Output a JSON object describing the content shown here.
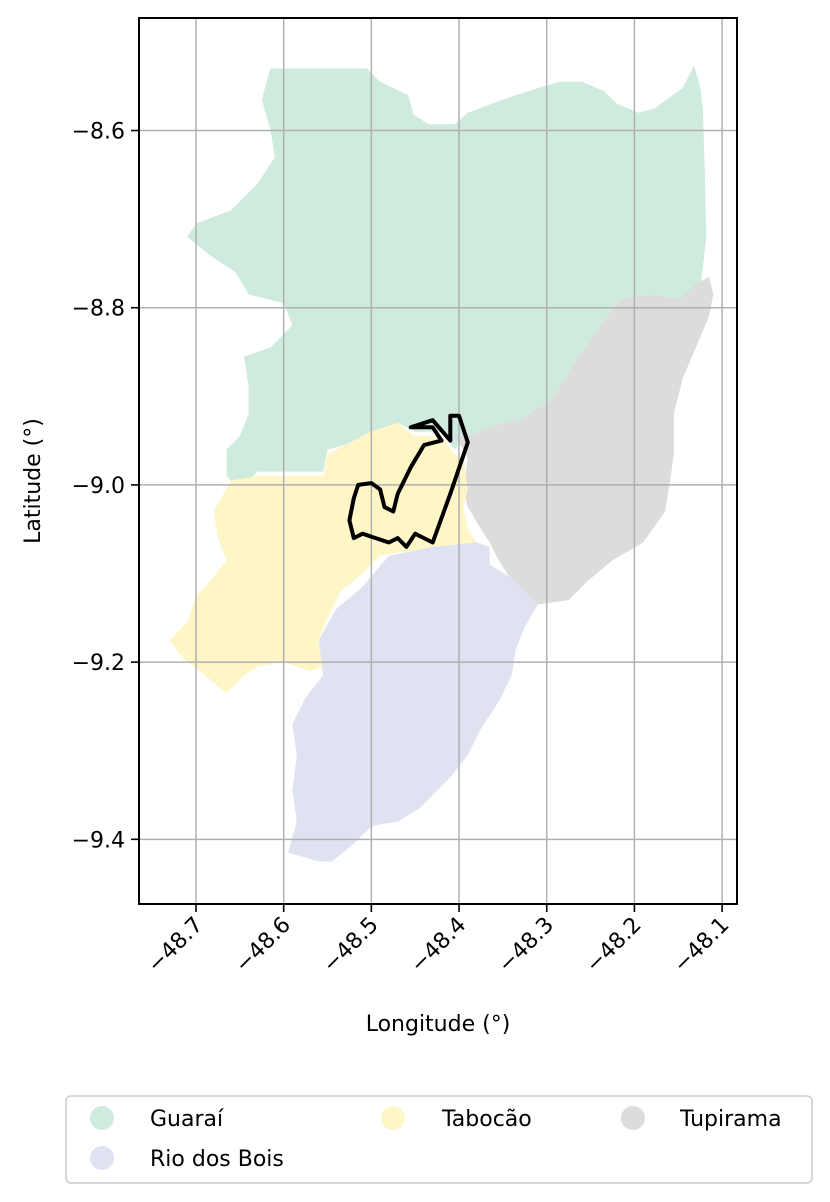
{
  "chart_data": {
    "type": "map",
    "xlabel": "Longitude (°)",
    "ylabel": "Latitude (°)",
    "xlim": [
      -48.765,
      -48.083
    ],
    "ylim": [
      -9.473,
      -8.473
    ],
    "xticks": [
      -48.7,
      -48.6,
      -48.5,
      -48.4,
      -48.3,
      -48.2,
      -48.1
    ],
    "yticks": [
      -8.6,
      -8.8,
      -9.0,
      -9.2,
      -9.4
    ],
    "xtick_labels": [
      "−48.7",
      "−48.6",
      "−48.5",
      "−48.4",
      "−48.3",
      "−48.2",
      "−48.1"
    ],
    "ytick_labels": [
      "−8.6",
      "−8.8",
      "−9.0",
      "−9.2",
      "−9.4"
    ],
    "grid": true,
    "legend_position": "bottom",
    "regions": [
      {
        "name": "Guaraí",
        "color": "#cfebdd",
        "coords": [
          [
            -48.615,
            -8.53
          ],
          [
            -48.555,
            -8.53
          ],
          [
            -48.505,
            -8.53
          ],
          [
            -48.49,
            -8.545
          ],
          [
            -48.458,
            -8.56
          ],
          [
            -48.452,
            -8.582
          ],
          [
            -48.435,
            -8.593
          ],
          [
            -48.405,
            -8.593
          ],
          [
            -48.39,
            -8.58
          ],
          [
            -48.35,
            -8.565
          ],
          [
            -48.31,
            -8.552
          ],
          [
            -48.285,
            -8.545
          ],
          [
            -48.26,
            -8.545
          ],
          [
            -48.235,
            -8.555
          ],
          [
            -48.22,
            -8.57
          ],
          [
            -48.195,
            -8.58
          ],
          [
            -48.177,
            -8.575
          ],
          [
            -48.145,
            -8.552
          ],
          [
            -48.132,
            -8.527
          ],
          [
            -48.125,
            -8.55
          ],
          [
            -48.122,
            -8.575
          ],
          [
            -48.12,
            -8.64
          ],
          [
            -48.118,
            -8.72
          ],
          [
            -48.125,
            -8.78
          ],
          [
            -48.147,
            -8.79
          ],
          [
            -48.185,
            -8.785
          ],
          [
            -48.215,
            -8.79
          ],
          [
            -48.235,
            -8.815
          ],
          [
            -48.27,
            -8.865
          ],
          [
            -48.295,
            -8.905
          ],
          [
            -48.33,
            -8.925
          ],
          [
            -48.365,
            -8.935
          ],
          [
            -48.39,
            -8.945
          ],
          [
            -48.405,
            -8.96
          ],
          [
            -48.42,
            -8.94
          ],
          [
            -48.45,
            -8.94
          ],
          [
            -48.47,
            -8.93
          ],
          [
            -48.5,
            -8.94
          ],
          [
            -48.53,
            -8.955
          ],
          [
            -48.55,
            -8.96
          ],
          [
            -48.555,
            -8.985
          ],
          [
            -48.59,
            -8.985
          ],
          [
            -48.63,
            -8.985
          ],
          [
            -48.65,
            -9.005
          ],
          [
            -48.665,
            -8.99
          ],
          [
            -48.665,
            -8.96
          ],
          [
            -48.65,
            -8.945
          ],
          [
            -48.64,
            -8.92
          ],
          [
            -48.64,
            -8.89
          ],
          [
            -48.645,
            -8.855
          ],
          [
            -48.615,
            -8.845
          ],
          [
            -48.59,
            -8.82
          ],
          [
            -48.6,
            -8.795
          ],
          [
            -48.64,
            -8.785
          ],
          [
            -48.655,
            -8.76
          ],
          [
            -48.685,
            -8.74
          ],
          [
            -48.71,
            -8.72
          ],
          [
            -48.7,
            -8.705
          ],
          [
            -48.66,
            -8.69
          ],
          [
            -48.63,
            -8.66
          ],
          [
            -48.61,
            -8.63
          ],
          [
            -48.615,
            -8.6
          ],
          [
            -48.625,
            -8.565
          ],
          [
            -48.615,
            -8.53
          ]
        ]
      },
      {
        "name": "Tupirama",
        "color": "#dcdcdc",
        "coords": [
          [
            -48.132,
            -8.775
          ],
          [
            -48.115,
            -8.765
          ],
          [
            -48.11,
            -8.785
          ],
          [
            -48.115,
            -8.81
          ],
          [
            -48.13,
            -8.845
          ],
          [
            -48.145,
            -8.88
          ],
          [
            -48.155,
            -8.92
          ],
          [
            -48.155,
            -8.965
          ],
          [
            -48.16,
            -9.0
          ],
          [
            -48.165,
            -9.03
          ],
          [
            -48.19,
            -9.065
          ],
          [
            -48.225,
            -9.085
          ],
          [
            -48.255,
            -9.11
          ],
          [
            -48.275,
            -9.13
          ],
          [
            -48.31,
            -9.135
          ],
          [
            -48.335,
            -9.115
          ],
          [
            -48.355,
            -9.085
          ],
          [
            -48.365,
            -9.065
          ],
          [
            -48.375,
            -9.05
          ],
          [
            -48.39,
            -9.025
          ],
          [
            -48.395,
            -9.005
          ],
          [
            -48.39,
            -8.97
          ],
          [
            -48.395,
            -8.96
          ],
          [
            -48.405,
            -8.945
          ],
          [
            -48.42,
            -8.945
          ],
          [
            -48.39,
            -8.945
          ],
          [
            -48.365,
            -8.935
          ],
          [
            -48.33,
            -8.925
          ],
          [
            -48.295,
            -8.905
          ],
          [
            -48.27,
            -8.865
          ],
          [
            -48.235,
            -8.815
          ],
          [
            -48.215,
            -8.79
          ],
          [
            -48.185,
            -8.785
          ],
          [
            -48.147,
            -8.79
          ],
          [
            -48.132,
            -8.775
          ]
        ]
      },
      {
        "name": "Tabocão",
        "color": "#fff6c8",
        "coords": [
          [
            -48.66,
            -8.995
          ],
          [
            -48.63,
            -8.99
          ],
          [
            -48.59,
            -8.99
          ],
          [
            -48.555,
            -8.99
          ],
          [
            -48.55,
            -8.965
          ],
          [
            -48.53,
            -8.955
          ],
          [
            -48.5,
            -8.94
          ],
          [
            -48.47,
            -8.93
          ],
          [
            -48.45,
            -8.945
          ],
          [
            -48.42,
            -8.945
          ],
          [
            -48.405,
            -8.965
          ],
          [
            -48.395,
            -8.97
          ],
          [
            -48.39,
            -9.005
          ],
          [
            -48.395,
            -9.025
          ],
          [
            -48.39,
            -9.05
          ],
          [
            -48.38,
            -9.065
          ],
          [
            -48.42,
            -9.07
          ],
          [
            -48.46,
            -9.075
          ],
          [
            -48.49,
            -9.08
          ],
          [
            -48.51,
            -9.1
          ],
          [
            -48.535,
            -9.12
          ],
          [
            -48.55,
            -9.15
          ],
          [
            -48.56,
            -9.175
          ],
          [
            -48.555,
            -9.205
          ],
          [
            -48.57,
            -9.21
          ],
          [
            -48.6,
            -9.2
          ],
          [
            -48.63,
            -9.205
          ],
          [
            -48.65,
            -9.22
          ],
          [
            -48.665,
            -9.235
          ],
          [
            -48.69,
            -9.215
          ],
          [
            -48.715,
            -9.195
          ],
          [
            -48.73,
            -9.175
          ],
          [
            -48.71,
            -9.155
          ],
          [
            -48.7,
            -9.125
          ],
          [
            -48.685,
            -9.11
          ],
          [
            -48.665,
            -9.085
          ],
          [
            -48.675,
            -9.06
          ],
          [
            -48.68,
            -9.03
          ],
          [
            -48.66,
            -8.995
          ]
        ]
      },
      {
        "name": "Rio dos Bois",
        "color": "#dfe3f1",
        "coords": [
          [
            -48.48,
            -9.08
          ],
          [
            -48.43,
            -9.07
          ],
          [
            -48.38,
            -9.065
          ],
          [
            -48.365,
            -9.07
          ],
          [
            -48.365,
            -9.09
          ],
          [
            -48.34,
            -9.105
          ],
          [
            -48.31,
            -9.135
          ],
          [
            -48.325,
            -9.16
          ],
          [
            -48.335,
            -9.185
          ],
          [
            -48.34,
            -9.215
          ],
          [
            -48.355,
            -9.245
          ],
          [
            -48.375,
            -9.275
          ],
          [
            -48.39,
            -9.305
          ],
          [
            -48.41,
            -9.33
          ],
          [
            -48.43,
            -9.35
          ],
          [
            -48.445,
            -9.365
          ],
          [
            -48.47,
            -9.38
          ],
          [
            -48.5,
            -9.385
          ],
          [
            -48.52,
            -9.405
          ],
          [
            -48.545,
            -9.425
          ],
          [
            -48.56,
            -9.425
          ],
          [
            -48.595,
            -9.415
          ],
          [
            -48.585,
            -9.38
          ],
          [
            -48.59,
            -9.345
          ],
          [
            -48.585,
            -9.305
          ],
          [
            -48.59,
            -9.27
          ],
          [
            -48.575,
            -9.24
          ],
          [
            -48.555,
            -9.215
          ],
          [
            -48.56,
            -9.175
          ],
          [
            -48.54,
            -9.14
          ],
          [
            -48.51,
            -9.115
          ],
          [
            -48.48,
            -9.08
          ]
        ]
      }
    ],
    "outline": {
      "color": "#000000",
      "coords": [
        [
          -48.4,
          -8.922
        ],
        [
          -48.39,
          -8.952
        ],
        [
          -48.41,
          -9.01
        ],
        [
          -48.43,
          -9.065
        ],
        [
          -48.44,
          -9.06
        ],
        [
          -48.45,
          -9.055
        ],
        [
          -48.46,
          -9.07
        ],
        [
          -48.47,
          -9.06
        ],
        [
          -48.48,
          -9.065
        ],
        [
          -48.495,
          -9.06
        ],
        [
          -48.51,
          -9.055
        ],
        [
          -48.52,
          -9.06
        ],
        [
          -48.525,
          -9.04
        ],
        [
          -48.52,
          -9.015
        ],
        [
          -48.515,
          -9.0
        ],
        [
          -48.5,
          -8.998
        ],
        [
          -48.49,
          -9.005
        ],
        [
          -48.485,
          -9.025
        ],
        [
          -48.475,
          -9.03
        ],
        [
          -48.47,
          -9.01
        ],
        [
          -48.455,
          -8.98
        ],
        [
          -48.44,
          -8.955
        ],
        [
          -48.42,
          -8.95
        ],
        [
          -48.43,
          -8.935
        ],
        [
          -48.455,
          -8.935
        ],
        [
          -48.43,
          -8.927
        ],
        [
          -48.41,
          -8.95
        ],
        [
          -48.41,
          -8.922
        ],
        [
          -48.4,
          -8.922
        ]
      ]
    }
  },
  "legend": [
    {
      "label": "Guaraí",
      "color": "#cfebdd"
    },
    {
      "label": "Tabocão",
      "color": "#fff6c8"
    },
    {
      "label": "Tupirama",
      "color": "#dcdcdc"
    },
    {
      "label": "Rio dos Bois",
      "color": "#dfe3f1"
    }
  ]
}
